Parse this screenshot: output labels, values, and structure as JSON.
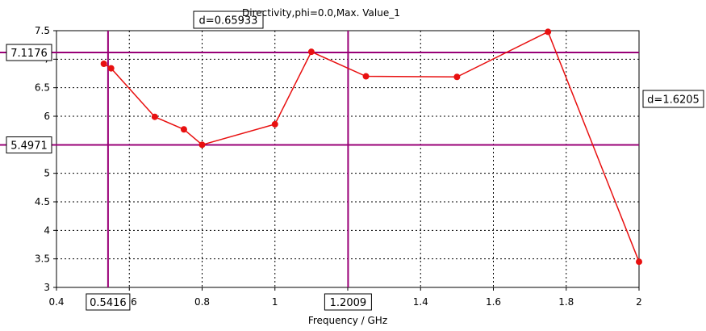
{
  "chart_data": {
    "type": "line",
    "title": "Directivity,phi=0.0,Max. Value_1",
    "xlabel": "Frequency / GHz",
    "ylabel": "",
    "xlim": [
      0.4,
      2.0
    ],
    "ylim": [
      3.0,
      7.5
    ],
    "x_ticks": [
      "0.4",
      "0.6",
      "0.8",
      "1",
      "1.2",
      "1.4",
      "1.6",
      "1.8",
      "2"
    ],
    "y_ticks": [
      "3",
      "3.5",
      "4",
      "4.5",
      "5",
      "5.5",
      "6",
      "6.5",
      "7",
      "7.5"
    ],
    "grid": true,
    "series": [
      {
        "color": "#e81010",
        "x": [
          0.53,
          0.55,
          0.67,
          0.75,
          0.8,
          1.0,
          1.1,
          1.25,
          1.5,
          1.75,
          2.0
        ],
        "y": [
          6.92,
          6.84,
          5.99,
          5.77,
          5.5,
          5.86,
          7.13,
          6.7,
          6.69,
          7.48,
          3.45
        ]
      }
    ],
    "markers": {
      "vertical": [
        {
          "x": 0.5416,
          "label": "0.5416"
        },
        {
          "x": 1.2009,
          "label": "1.2009"
        }
      ],
      "horizontal": [
        {
          "y": 7.1176,
          "label": "7.1176"
        },
        {
          "y": 5.4971,
          "label": "5.4971"
        }
      ],
      "dx_label": "d=0.65933",
      "dy_label": "d=1.6205",
      "color": "#990077"
    }
  }
}
